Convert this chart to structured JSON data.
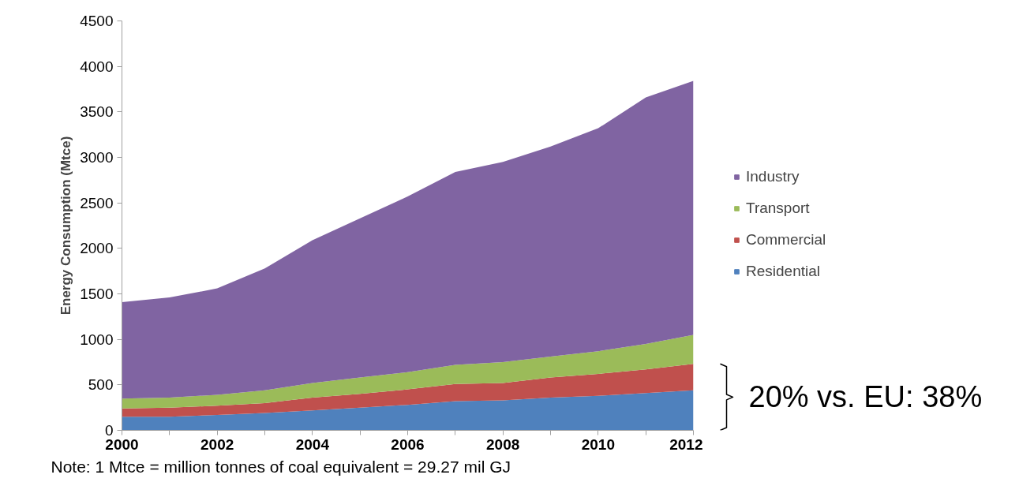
{
  "chart_data": {
    "type": "area",
    "stacked": true,
    "ylabel": "Energy Consumption (Mtce)",
    "x": [
      2000,
      2001,
      2002,
      2003,
      2004,
      2005,
      2006,
      2007,
      2008,
      2009,
      2010,
      2011,
      2012
    ],
    "series": [
      {
        "name": "Residential",
        "color": "#4f81bd",
        "values": [
          150,
          150,
          170,
          190,
          220,
          250,
          280,
          320,
          330,
          360,
          380,
          410,
          440
        ]
      },
      {
        "name": "Commercial",
        "color": "#c0504d",
        "values": [
          90,
          100,
          100,
          110,
          140,
          150,
          170,
          190,
          190,
          220,
          240,
          260,
          290
        ]
      },
      {
        "name": "Transport",
        "color": "#9bbb59",
        "values": [
          110,
          110,
          120,
          140,
          160,
          180,
          190,
          210,
          230,
          230,
          250,
          280,
          320
        ]
      },
      {
        "name": "Industry",
        "color": "#8064a2",
        "values": [
          1060,
          1100,
          1170,
          1340,
          1570,
          1750,
          1930,
          2120,
          2200,
          2310,
          2450,
          2710,
          2790
        ]
      }
    ],
    "xlim": [
      2000,
      2012
    ],
    "xticks": [
      2000,
      {
        "value": 2001,
        "label": null
      },
      2002,
      {
        "value": 2003,
        "label": null
      },
      2004,
      {
        "value": 2005,
        "label": null
      },
      2006,
      {
        "value": 2007,
        "label": null
      },
      2008,
      {
        "value": 2009,
        "label": null
      },
      2010,
      {
        "value": 2011,
        "label": null
      },
      2012
    ],
    "ylim": [
      0,
      4500
    ],
    "yticks": [
      0,
      500,
      1000,
      1500,
      2000,
      2500,
      3000,
      3500,
      4000,
      4500
    ],
    "grid": false,
    "legend": "right",
    "annotations": [
      {
        "text": "20% vs.    EU: 38%",
        "x": 2012,
        "y": 730
      },
      "Note: 1 Mtce = million tonnes of coal equivalent = 29.27 mil GJ"
    ]
  }
}
